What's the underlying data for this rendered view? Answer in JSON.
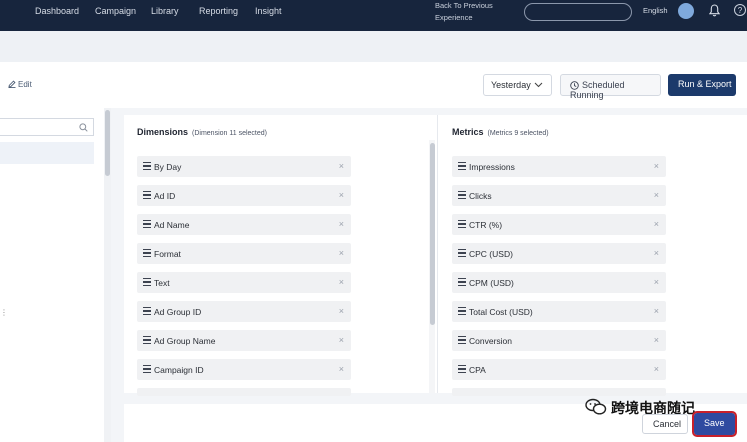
{
  "nav": {
    "items": [
      "Dashboard",
      "Campaign",
      "Library",
      "Reporting",
      "Insight"
    ],
    "back_line1": "Back To Previous",
    "back_line2": "Experience",
    "language": "English",
    "help": "?"
  },
  "header": {
    "edit_label": "Edit",
    "date_value": "Yesterday",
    "scheduled_label": "Scheduled Running",
    "run_export_label": "Run & Export"
  },
  "dimensions": {
    "title": "Dimensions",
    "subtitle": "(Dimension 11 selected)",
    "items": [
      "By Day",
      "Ad ID",
      "Ad Name",
      "Format",
      "Text",
      "Ad Group ID",
      "Ad Group Name",
      "Campaign ID"
    ]
  },
  "metrics": {
    "title": "Metrics",
    "subtitle": "(Metrics 9 selected)",
    "items": [
      "Impressions",
      "Clicks",
      "CTR (%)",
      "CPC (USD)",
      "CPM (USD)",
      "Total Cost (USD)",
      "Conversion",
      "CPA"
    ]
  },
  "footer": {
    "cancel_label": "Cancel",
    "save_label": "Save"
  },
  "watermark": "跨境电商随记",
  "colors": {
    "nav_bg": "#17253d",
    "primary": "#1c3a6b",
    "save": "#2f4aa0",
    "highlight_outline": "#c8202a"
  }
}
